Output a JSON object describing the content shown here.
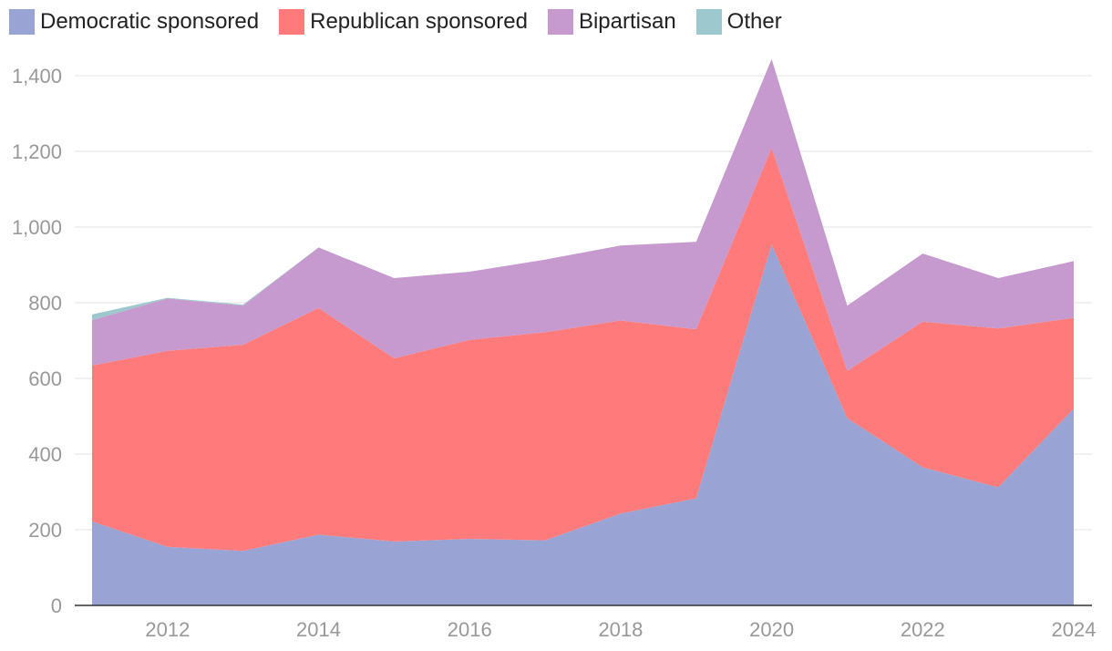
{
  "chart_data": {
    "type": "area",
    "stacked": true,
    "x": [
      2011,
      2012,
      2013,
      2014,
      2015,
      2016,
      2017,
      2018,
      2019,
      2020,
      2021,
      2022,
      2023,
      2024
    ],
    "x_ticks": [
      "2012",
      "2014",
      "2016",
      "2018",
      "2020",
      "2022",
      "2024"
    ],
    "y_ticks": [
      "0",
      "200",
      "400",
      "600",
      "800",
      "1,000",
      "1,200",
      "1,400"
    ],
    "ylim": [
      0,
      1400
    ],
    "grid": true,
    "legend_position": "top-left",
    "series": [
      {
        "name": "Democratic sponsored",
        "color": "#99a4d4",
        "values": [
          222,
          155,
          144,
          187,
          169,
          176,
          172,
          243,
          283,
          954,
          495,
          365,
          312,
          520
        ]
      },
      {
        "name": "Republican sponsored",
        "color": "#ff7b7b",
        "values": [
          412,
          518,
          545,
          599,
          484,
          526,
          550,
          510,
          447,
          255,
          125,
          385,
          420,
          240
        ]
      },
      {
        "name": "Bipartisan",
        "color": "#c69ace",
        "values": [
          120,
          138,
          103,
          160,
          212,
          180,
          192,
          198,
          231,
          235,
          172,
          180,
          133,
          150
        ]
      },
      {
        "name": "Other",
        "color": "#9dc8ce",
        "values": [
          15,
          2,
          3,
          0,
          0,
          0,
          0,
          0,
          0,
          0,
          0,
          0,
          0,
          0
        ]
      }
    ]
  }
}
